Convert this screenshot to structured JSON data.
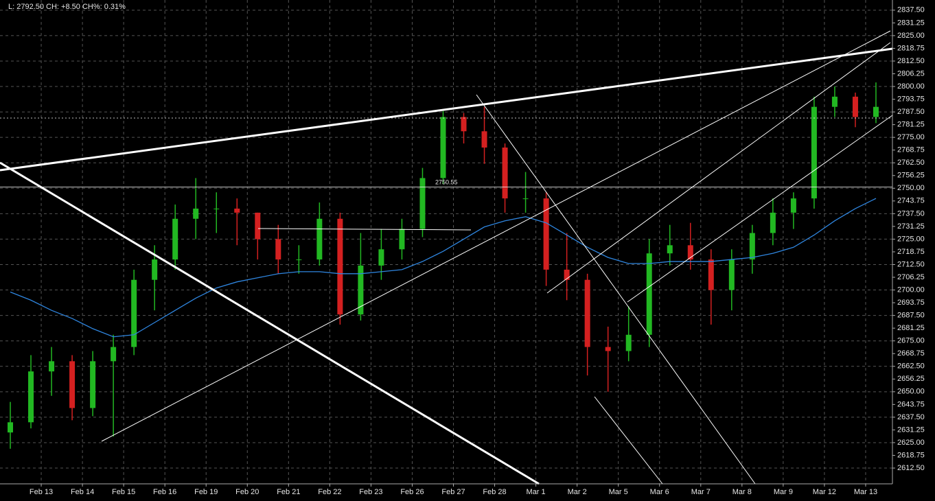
{
  "chart_data": {
    "type": "candlestick",
    "info": "L: 2792.50 CH: +8.50 CH%: 0.31%",
    "annotation": "2750.55",
    "categories": [
      null,
      null,
      "Feb 13",
      null,
      "Feb 14",
      null,
      "Feb 15",
      null,
      "Feb 16",
      null,
      "Feb 19",
      null,
      "Feb 20",
      null,
      "Feb 21",
      null,
      "Feb 22",
      null,
      "Feb 23",
      null,
      "Feb 26",
      null,
      "Feb 27",
      null,
      "Feb 28",
      null,
      "Mar 1",
      null,
      "Mar 2",
      null,
      "Mar 5",
      null,
      "Mar 6",
      null,
      "Mar 7",
      null,
      "Mar 8",
      null,
      "Mar 9",
      null,
      "Mar 12",
      null,
      "Mar 13"
    ],
    "open": [
      2630,
      2635,
      2660,
      2665,
      2642,
      2665,
      2672,
      2705,
      2715,
      2735,
      2740,
      2740,
      2738,
      2725,
      2715,
      2715,
      2735,
      2688,
      2712,
      2720,
      2730,
      2755,
      2785,
      2778,
      2770,
      2745,
      2745,
      2710,
      2705,
      2672,
      2670,
      2678,
      2718,
      2722,
      2715,
      2700,
      2715,
      2728,
      2738,
      2745,
      2790,
      2795,
      2785
    ],
    "high": [
      2645,
      2668,
      2672,
      2668,
      2670,
      2678,
      2710,
      2722,
      2742,
      2755,
      2748,
      2745,
      2738,
      2732,
      2722,
      2743,
      2738,
      2728,
      2730,
      2735,
      2760,
      2788,
      2787,
      2790,
      2772,
      2758,
      2748,
      2728,
      2708,
      2682,
      2692,
      2725,
      2732,
      2733,
      2720,
      2720,
      2732,
      2745,
      2748,
      2795,
      2800,
      2797,
      2802
    ],
    "low": [
      2622,
      2632,
      2648,
      2636,
      2638,
      2628,
      2668,
      2690,
      2710,
      2725,
      2728,
      2722,
      2715,
      2708,
      2708,
      2712,
      2683,
      2685,
      2705,
      2715,
      2726,
      2752,
      2772,
      2762,
      2738,
      2738,
      2702,
      2695,
      2658,
      2650,
      2665,
      2672,
      2712,
      2710,
      2683,
      2690,
      2708,
      2722,
      2730,
      2740,
      2785,
      2780,
      2782
    ],
    "close": [
      2635,
      2660,
      2665,
      2642,
      2665,
      2672,
      2705,
      2715,
      2735,
      2740,
      2740,
      2738,
      2725,
      2715,
      2715,
      2735,
      2688,
      2712,
      2720,
      2730,
      2755,
      2785,
      2778,
      2770,
      2745,
      2745,
      2710,
      2705,
      2672,
      2670,
      2678,
      2718,
      2722,
      2715,
      2700,
      2715,
      2728,
      2738,
      2745,
      2790,
      2795,
      2785,
      2790
    ],
    "up_color": "#22b822",
    "down_color": "#d42020",
    "ma": {
      "color": "#2f86e0",
      "values": [
        2699,
        2695,
        2690,
        2686,
        2681,
        2677,
        2678,
        2684,
        2690,
        2696,
        2701,
        2704,
        2706,
        2708,
        2709,
        2709,
        2708,
        2708,
        2709,
        2710,
        2714,
        2719,
        2725,
        2731,
        2734,
        2736,
        2733,
        2727,
        2721,
        2716,
        2713,
        2713,
        2714,
        2714,
        2714,
        2715,
        2716,
        2718,
        2721,
        2727,
        2734,
        2740,
        2745
      ]
    },
    "ylim": [
      2604.75,
      2842.5
    ],
    "yticks": [
      {
        "value": 2612.5,
        "label": "2612.50"
      },
      2618.75,
      {
        "value": 2625,
        "label": "2625.00"
      },
      2631.25,
      {
        "value": 2637.5,
        "label": "2637.50"
      },
      2643.75,
      {
        "value": 2650,
        "label": "2650.00"
      },
      2656.25,
      {
        "value": 2662.5,
        "label": "2662.50"
      },
      2668.75,
      {
        "value": 2675,
        "label": "2675.00"
      },
      2681.25,
      {
        "value": 2687.5,
        "label": "2687.50"
      },
      2693.75,
      {
        "value": 2700,
        "label": "2700.00"
      },
      2706.25,
      {
        "value": 2712.5,
        "label": "2712.50"
      },
      2718.75,
      {
        "value": 2725,
        "label": "2725.00"
      },
      2731.25,
      {
        "value": 2737.5,
        "label": "2737.50"
      },
      2743.75,
      {
        "value": 2750,
        "label": "2750.00"
      },
      2756.25,
      {
        "value": 2762.5,
        "label": "2762.50"
      },
      2768.75,
      {
        "value": 2775,
        "label": "2775.00"
      },
      2781.25,
      {
        "value": 2787.5,
        "label": "2787.50"
      },
      2793.75,
      {
        "value": 2800,
        "label": "2800.00"
      },
      2806.25,
      {
        "value": 2812.5,
        "label": "2812.50"
      },
      2818.75,
      {
        "value": 2825,
        "label": "2825.00"
      },
      2831.25,
      {
        "value": 2837.5,
        "label": "2837.50"
      }
    ],
    "grid": true
  }
}
